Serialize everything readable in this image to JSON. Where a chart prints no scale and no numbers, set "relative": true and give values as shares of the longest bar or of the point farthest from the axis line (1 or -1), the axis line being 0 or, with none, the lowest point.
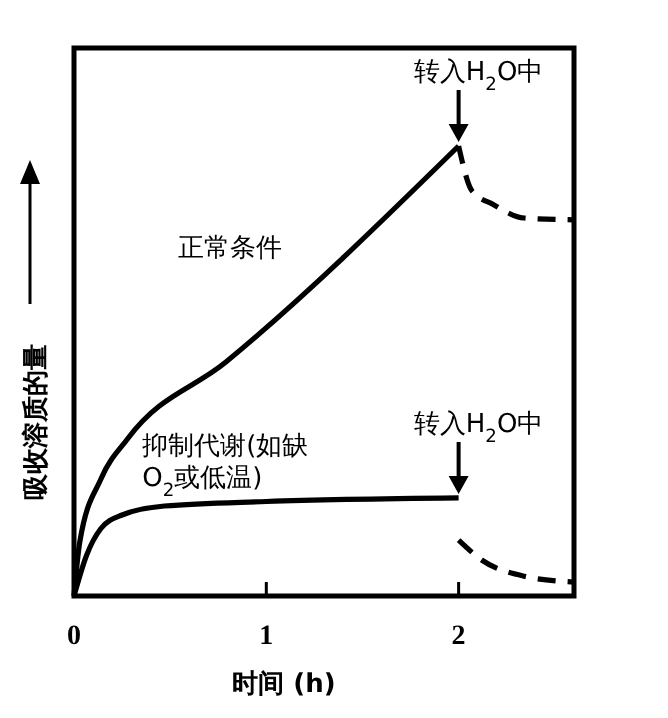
{
  "chart_data": {
    "type": "line",
    "relative": true,
    "xlabel": "时间 (h)",
    "ylabel": "吸收溶质的量",
    "xlim": [
      0,
      2.6
    ],
    "xticks": [
      0,
      1,
      2
    ],
    "grid": false,
    "series": [
      {
        "name": "正常条件",
        "color": "#000000",
        "line_style": "solid",
        "x": [
          0,
          0.03,
          0.14,
          0.28,
          0.79,
          2
        ],
        "values": [
          0,
          0.12,
          0.26,
          0.35,
          0.52,
          1
        ]
      },
      {
        "name": "抑制代谢(如缺O$_{2}$或低温)",
        "color": "#000000",
        "line_style": "solid",
        "x": [
          0,
          0.065,
          0.14,
          0.25,
          0.47,
          1,
          2
        ],
        "values": [
          0,
          0.09,
          0.15,
          0.18,
          0.2,
          0.21,
          0.218
        ]
      },
      {
        "color": "#000000",
        "line_style": "dashed",
        "x": [
          2,
          2.07,
          2.18,
          2.34,
          2.6
        ],
        "values": [
          1,
          0.9,
          0.87,
          0.84,
          0.836
        ]
      },
      {
        "color": "#000000",
        "line_style": "dashed",
        "x": [
          2,
          2.12,
          2.34,
          2.6
        ],
        "values": [
          0.124,
          0.08,
          0.044,
          0.031
        ]
      }
    ],
    "annotations": [
      {
        "text": "转入H$_{2}$O中",
        "x": 2,
        "y": 1
      },
      {
        "text": "转入H$_{2}$O中",
        "x": 2,
        "y": 0.218
      }
    ]
  }
}
